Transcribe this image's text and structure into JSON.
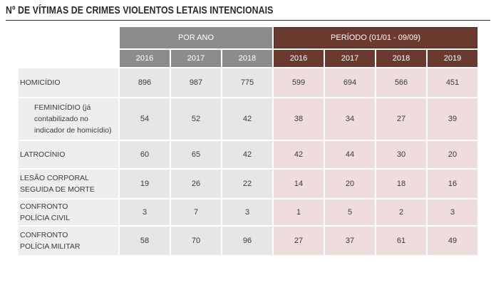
{
  "title": "Nº DE VÍTIMAS DE CRIMES VIOLENTOS LETAIS INTENCIONAIS",
  "groups": {
    "per_year": "POR ANO",
    "period": "PERÍODO (01/01 - 09/09)"
  },
  "years_per_year": [
    "2016",
    "2017",
    "2018"
  ],
  "years_period": [
    "2016",
    "2017",
    "2018",
    "2019"
  ],
  "rows": [
    {
      "label": "HOMICÍDIO",
      "per_year": [
        "896",
        "987",
        "775"
      ],
      "period": [
        "599",
        "694",
        "566",
        "451"
      ]
    },
    {
      "label": "FEMINICÍDIO (já contabilizado no indicador de homicídio)",
      "per_year": [
        "54",
        "52",
        "42"
      ],
      "period": [
        "38",
        "34",
        "27",
        "39"
      ]
    },
    {
      "label": "LATROCÍNIO",
      "per_year": [
        "60",
        "65",
        "42"
      ],
      "period": [
        "42",
        "44",
        "30",
        "20"
      ]
    },
    {
      "label": "LESÃO CORPORAL SEGUIDA DE MORTE",
      "per_year": [
        "19",
        "26",
        "22"
      ],
      "period": [
        "14",
        "20",
        "18",
        "16"
      ]
    },
    {
      "label": "CONFRONTO POLÍCIA CIVIL",
      "per_year": [
        "3",
        "7",
        "3"
      ],
      "period": [
        "1",
        "5",
        "2",
        "3"
      ]
    },
    {
      "label": "CONFRONTO POLÍCIA MILITAR",
      "per_year": [
        "58",
        "70",
        "96"
      ],
      "period": [
        "27",
        "37",
        "61",
        "49"
      ]
    }
  ],
  "colors": {
    "per_year_header": "#8c8c8c",
    "period_header": "#6a3a2e",
    "per_year_cells": "#e6e6e6",
    "period_cells": "#efdcdc",
    "label_cells": "#eeeeee"
  }
}
